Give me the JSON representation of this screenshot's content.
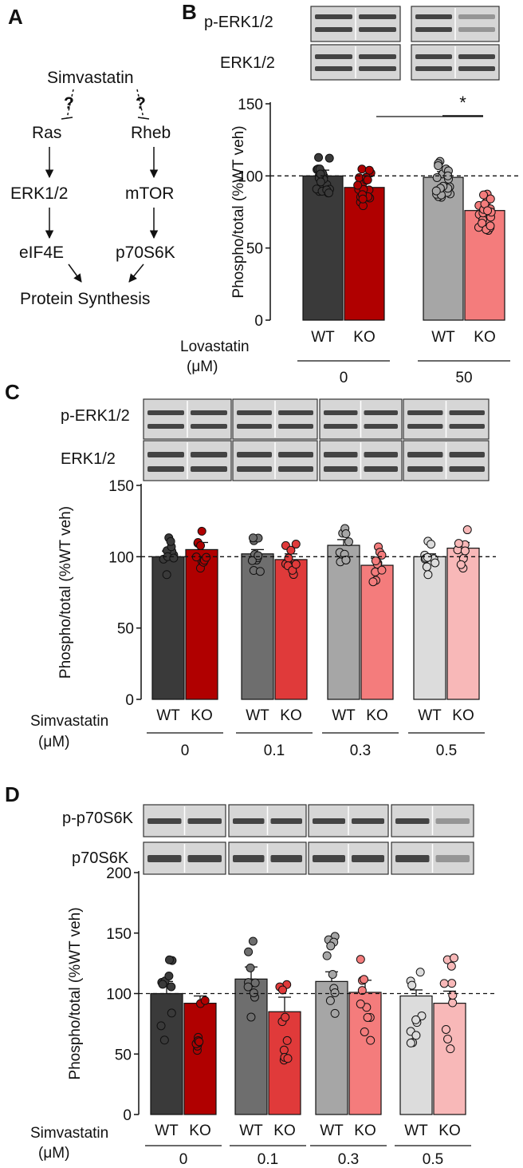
{
  "panels": {
    "A": "A",
    "B": "B",
    "C": "C",
    "D": "D"
  },
  "pathway": {
    "drug": "Simvastatin",
    "unknown_mark": "?",
    "left": [
      "Ras",
      "ERK1/2",
      "eIF4E"
    ],
    "right": [
      "Rheb",
      "mTOR",
      "p70S6K"
    ],
    "output": "Protein Synthesis"
  },
  "blots": {
    "B": {
      "top": "p-ERK1/2",
      "bottom": "ERK1/2"
    },
    "C": {
      "top": "p-ERK1/2",
      "bottom": "ERK1/2"
    },
    "D": {
      "top": "p-p70S6K",
      "bottom": "p70S6K"
    }
  },
  "colors": {
    "wt": [
      "#3a3a3a",
      "#6e6e6e",
      "#a6a6a6",
      "#dcdcdc"
    ],
    "ko": [
      "#b00000",
      "#e03a3a",
      "#f47c7c",
      "#f8b8b8"
    ]
  },
  "chart_data": [
    {
      "type": "bar",
      "panel": "B",
      "ylabel": "Phospho/total (%WT veh)",
      "ylim": [
        0,
        150
      ],
      "yticks": [
        0,
        50,
        100,
        150
      ],
      "reference_line": 100,
      "condition_label": [
        "Lovastatin",
        "(μM)"
      ],
      "genotypes": [
        "WT",
        "KO"
      ],
      "groups": [
        "0",
        "50"
      ],
      "series": [
        {
          "name": "WT",
          "values": [
            100,
            99
          ]
        },
        {
          "name": "KO",
          "values": [
            92,
            76
          ]
        }
      ],
      "sem": {
        "WT": [
          4,
          4
        ],
        "KO": [
          4,
          3
        ]
      },
      "significance": "*"
    },
    {
      "type": "bar",
      "panel": "C",
      "ylabel": "Phospho/total (%WT veh)",
      "ylim": [
        0,
        150
      ],
      "yticks": [
        0,
        50,
        100,
        150
      ],
      "reference_line": 100,
      "condition_label": [
        "Simvastatin",
        "(μM)"
      ],
      "genotypes": [
        "WT",
        "KO"
      ],
      "groups": [
        "0",
        "0.1",
        "0.3",
        "0.5"
      ],
      "series": [
        {
          "name": "WT",
          "values": [
            100,
            102,
            108,
            100
          ]
        },
        {
          "name": "KO",
          "values": [
            105,
            98,
            94,
            106
          ]
        }
      ],
      "sem": {
        "WT": [
          4,
          3,
          4,
          2
        ],
        "KO": [
          5,
          4,
          5,
          4
        ]
      }
    },
    {
      "type": "bar",
      "panel": "D",
      "ylabel": "Phospho/total (%WT veh)",
      "ylim": [
        0,
        200
      ],
      "yticks": [
        0,
        50,
        100,
        150,
        200
      ],
      "reference_line": 100,
      "condition_label": [
        "Simvastatin",
        "(μM)"
      ],
      "genotypes": [
        "WT",
        "KO"
      ],
      "groups": [
        "0",
        "0.1",
        "0.3",
        "0.5"
      ],
      "series": [
        {
          "name": "WT",
          "values": [
            100,
            112,
            110,
            98
          ]
        },
        {
          "name": "KO",
          "values": [
            92,
            85,
            101,
            92
          ]
        }
      ],
      "sem": {
        "WT": [
          10,
          10,
          8,
          5
        ],
        "KO": [
          6,
          12,
          10,
          10
        ]
      }
    }
  ]
}
